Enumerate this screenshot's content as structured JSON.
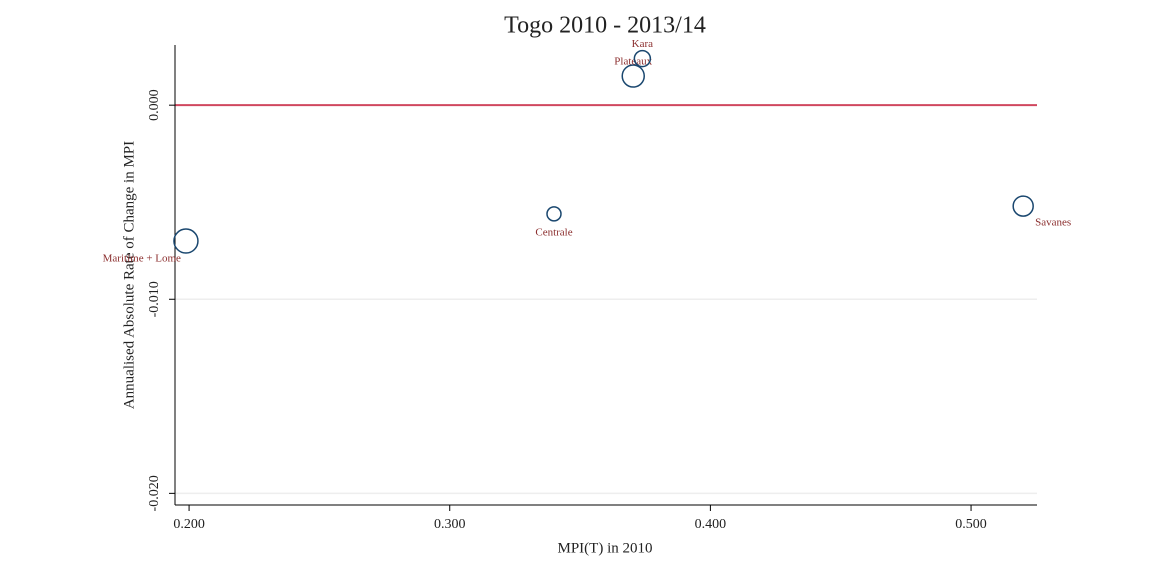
{
  "chart_data": {
    "type": "scatter",
    "title": "Togo 2010 - 2013/14",
    "x_label": "MPI(T) in 2010",
    "y_label": "Annualised Absolute Rate of Change in MPI",
    "labels": [
      "Maritime + Lome",
      "Centrale",
      "Savanes",
      "Plateaux",
      "Kara"
    ],
    "x": [
      0.1988,
      0.34,
      0.52,
      0.3704,
      0.3739
    ],
    "values": [
      -0.007,
      -0.0056,
      -0.0052,
      0.0015,
      0.0024
    ],
    "sizes": [
      12,
      7,
      10,
      11,
      8
    ],
    "color": "#1a476f",
    "label_color": "#8b2e2e",
    "hline": 0,
    "hline_color": "#d0475f",
    "xlim": [
      0.1946,
      0.5253
    ],
    "ylim": [
      -0.0206,
      0.0031
    ],
    "xticks": [
      {
        "value": 0.2,
        "label": "0.200"
      },
      {
        "value": 0.3,
        "label": "0.300"
      },
      {
        "value": 0.4,
        "label": "0.400"
      },
      {
        "value": 0.5,
        "label": "0.500"
      }
    ],
    "yticks": [
      {
        "value": 0,
        "label": "0.000"
      },
      {
        "value": -0.01,
        "label": "-0.010"
      },
      {
        "value": -0.02,
        "label": "-0.020"
      }
    ],
    "grid": true
  }
}
